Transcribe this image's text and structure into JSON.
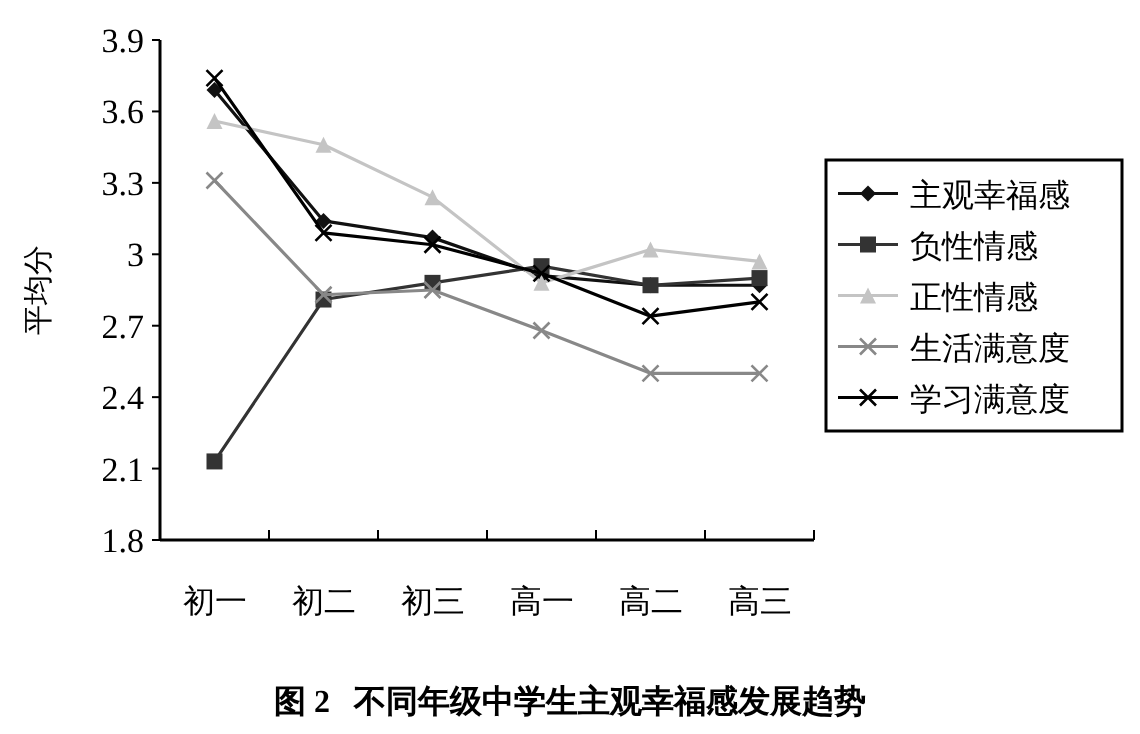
{
  "chart_data": {
    "type": "line",
    "title": "图 2   不同年级中学生主观幸福感发展趋势",
    "ylabel": "平均分",
    "categories": [
      "初一",
      "初二",
      "初三",
      "高一",
      "高二",
      "高三"
    ],
    "ylim": [
      1.8,
      3.9
    ],
    "yticks": [
      1.8,
      2.1,
      2.4,
      2.7,
      3,
      3.3,
      3.6,
      3.9
    ],
    "grid": false,
    "legend": "right",
    "series": [
      {
        "name": "主观幸福感",
        "color": "#111111",
        "marker": "diamond",
        "values": [
          3.69,
          3.14,
          3.07,
          2.91,
          2.87,
          2.87
        ]
      },
      {
        "name": "负性情感",
        "color": "#333333",
        "marker": "square",
        "values": [
          2.13,
          2.81,
          2.88,
          2.95,
          2.87,
          2.9
        ]
      },
      {
        "name": "正性情感",
        "color": "#c4c4c4",
        "marker": "triangle",
        "values": [
          3.56,
          3.46,
          3.24,
          2.88,
          3.02,
          2.97
        ]
      },
      {
        "name": "生活满意度",
        "color": "#888888",
        "marker": "cross",
        "values": [
          3.31,
          2.83,
          2.85,
          2.68,
          2.5,
          2.5
        ]
      },
      {
        "name": "学习满意度",
        "color": "#000000",
        "marker": "cross",
        "values": [
          3.74,
          3.09,
          3.04,
          2.92,
          2.74,
          2.8
        ]
      }
    ]
  }
}
